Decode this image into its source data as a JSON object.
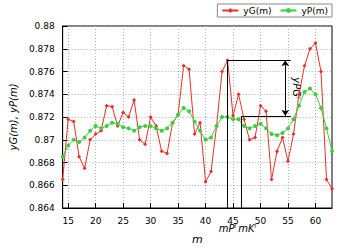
{
  "chart_data": {
    "type": "line",
    "y_label": "yG(m), yP(m)",
    "x_label": "m",
    "x": [
      14,
      15,
      16,
      17,
      18,
      19,
      20,
      21,
      22,
      23,
      24,
      25,
      26,
      27,
      28,
      29,
      30,
      31,
      32,
      33,
      34,
      35,
      36,
      37,
      38,
      39,
      40,
      41,
      42,
      43,
      44,
      45,
      46,
      47,
      48,
      49,
      50,
      51,
      52,
      53,
      54,
      55,
      56,
      57,
      58,
      59,
      60,
      61,
      62,
      63
    ],
    "series": [
      {
        "name": "yG(m)",
        "color": "#e8302a",
        "marker": "diamond",
        "line_style": "solid",
        "values": [
          0.8665,
          0.8718,
          0.8716,
          0.8685,
          0.8675,
          0.87,
          0.8705,
          0.8708,
          0.873,
          0.8729,
          0.8712,
          0.8724,
          0.872,
          0.8735,
          0.87,
          0.8696,
          0.872,
          0.8712,
          0.869,
          0.8688,
          0.8715,
          0.8722,
          0.8765,
          0.8762,
          0.8705,
          0.8715,
          0.8663,
          0.8672,
          0.8712,
          0.876,
          0.877,
          0.8721,
          0.874,
          0.8718,
          0.87,
          0.8702,
          0.873,
          0.8725,
          0.8665,
          0.869,
          0.8702,
          0.8681,
          0.8705,
          0.874,
          0.8765,
          0.878,
          0.8785,
          0.876,
          0.8665,
          0.8657
        ]
      },
      {
        "name": "yP(m)",
        "color": "#3ccf3c",
        "marker": "circle",
        "line_style": "solid",
        "values": [
          0.8685,
          0.8695,
          0.87,
          0.8698,
          0.8702,
          0.8708,
          0.8712,
          0.871,
          0.8712,
          0.8715,
          0.8714,
          0.8711,
          0.871,
          0.8708,
          0.8711,
          0.8712,
          0.8712,
          0.871,
          0.8708,
          0.871,
          0.8715,
          0.8722,
          0.8728,
          0.8725,
          0.8716,
          0.8708,
          0.87,
          0.8702,
          0.8712,
          0.872,
          0.872,
          0.8718,
          0.8718,
          0.8712,
          0.871,
          0.8712,
          0.8714,
          0.871,
          0.8705,
          0.8704,
          0.8706,
          0.871,
          0.8718,
          0.873,
          0.8742,
          0.8745,
          0.874,
          0.8728,
          0.871,
          0.869
        ]
      }
    ],
    "xlim": [
      14,
      63
    ],
    "xticks": [
      15,
      20,
      25,
      30,
      35,
      40,
      45,
      50,
      55,
      60
    ],
    "ylim": [
      0.864,
      0.88
    ],
    "yticks": [
      0.864,
      0.866,
      0.868,
      0.87,
      0.872,
      0.874,
      0.876,
      0.878,
      0.88
    ],
    "grid": true,
    "legend": "top-right",
    "annotations": [
      {
        "text": "mPˡ",
        "x": 44,
        "y": 0.877
      },
      {
        "text": "mKˡ",
        "x": 46.5,
        "y": 0.8721
      },
      {
        "text": "yPGˡ",
        "x": 54.5,
        "y1": 0.8721,
        "y2": 0.877
      }
    ]
  }
}
